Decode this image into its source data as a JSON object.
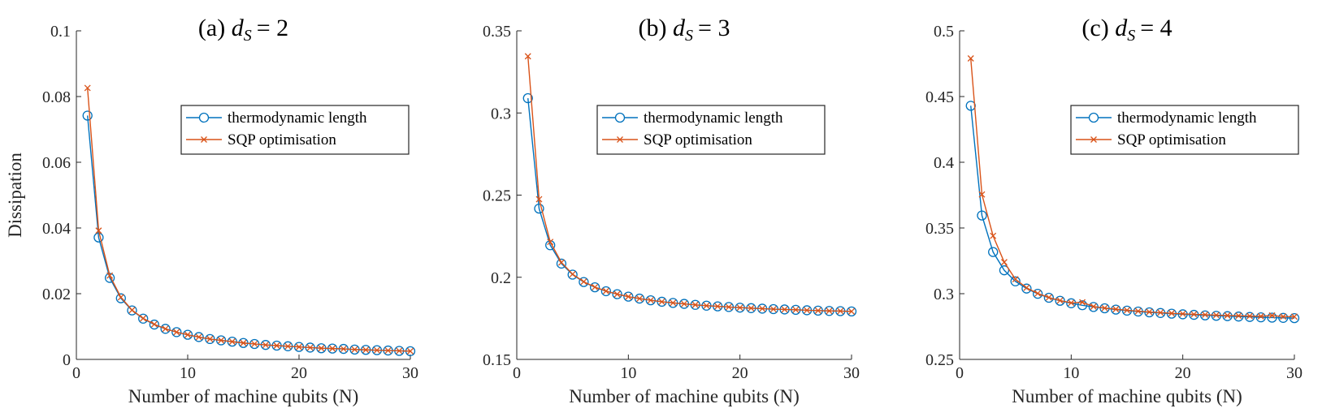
{
  "chart_data": [
    {
      "type": "line",
      "title_prefix": "(a)",
      "title_var": "d",
      "title_sub": "S",
      "title_rhs": "= 2",
      "xlabel": "Number of machine qubits (N)",
      "ylabel": "Dissipation",
      "xlim": [
        0,
        30
      ],
      "ylim": [
        0,
        0.1
      ],
      "xticks": [
        0,
        10,
        20,
        30
      ],
      "xtick_labels": [
        "0",
        "10",
        "20",
        "30"
      ],
      "yticks": [
        0,
        0.02,
        0.04,
        0.06,
        0.08,
        0.1
      ],
      "ytick_labels": [
        "0",
        "0.02",
        "0.04",
        "0.06",
        "0.08",
        "0.1"
      ],
      "grid": false,
      "legend_position": "top-right",
      "x": [
        1,
        2,
        3,
        4,
        5,
        6,
        7,
        8,
        9,
        10,
        11,
        12,
        13,
        14,
        15,
        16,
        17,
        18,
        19,
        20,
        21,
        22,
        23,
        24,
        25,
        26,
        27,
        28,
        29,
        30
      ],
      "series": [
        {
          "name": "thermodynamic length",
          "color": "#0072BD",
          "marker": "circle",
          "values": [
            0.0742,
            0.0371,
            0.0248,
            0.0186,
            0.0149,
            0.0124,
            0.0106,
            0.0093,
            0.0083,
            0.0075,
            0.0068,
            0.0062,
            0.0058,
            0.0054,
            0.005,
            0.0047,
            0.0044,
            0.0042,
            0.004,
            0.0038,
            0.0036,
            0.0034,
            0.0033,
            0.0032,
            0.003,
            0.0029,
            0.0028,
            0.0027,
            0.0026,
            0.0025
          ]
        },
        {
          "name": "SQP optimisation",
          "color": "#D95319",
          "marker": "x",
          "values": [
            0.0826,
            0.0392,
            0.0255,
            0.0189,
            0.015,
            0.0125,
            0.0107,
            0.0093,
            0.0083,
            0.0075,
            0.0068,
            0.0062,
            0.0058,
            0.0054,
            0.005,
            0.0047,
            0.0044,
            0.0042,
            0.004,
            0.0038,
            0.0036,
            0.0034,
            0.0033,
            0.0032,
            0.003,
            0.0029,
            0.0028,
            0.0027,
            0.0026,
            0.0025
          ]
        }
      ]
    },
    {
      "type": "line",
      "title_prefix": "(b)",
      "title_var": "d",
      "title_sub": "S",
      "title_rhs": "= 3",
      "xlabel": "Number of machine qubits (N)",
      "ylabel": "",
      "xlim": [
        0,
        30
      ],
      "ylim": [
        0.15,
        0.35
      ],
      "xticks": [
        0,
        10,
        20,
        30
      ],
      "xtick_labels": [
        "0",
        "10",
        "20",
        "30"
      ],
      "yticks": [
        0.15,
        0.2,
        0.25,
        0.3,
        0.35
      ],
      "ytick_labels": [
        "0.15",
        "0.2",
        "0.25",
        "0.3",
        "0.35"
      ],
      "grid": false,
      "legend_position": "top-right",
      "x": [
        1,
        2,
        3,
        4,
        5,
        6,
        7,
        8,
        9,
        10,
        11,
        12,
        13,
        14,
        15,
        16,
        17,
        18,
        19,
        20,
        21,
        22,
        23,
        24,
        25,
        26,
        27,
        28,
        29,
        30
      ],
      "series": [
        {
          "name": "thermodynamic length",
          "color": "#0072BD",
          "marker": "circle",
          "values": [
            0.309,
            0.2418,
            0.2195,
            0.2083,
            0.2016,
            0.1971,
            0.1939,
            0.1915,
            0.1897,
            0.1882,
            0.187,
            0.186,
            0.1851,
            0.1844,
            0.1838,
            0.1832,
            0.1827,
            0.1823,
            0.1819,
            0.1815,
            0.1812,
            0.1809,
            0.1806,
            0.1804,
            0.1802,
            0.1799,
            0.1797,
            0.1795,
            0.1794,
            0.1792
          ]
        },
        {
          "name": "SQP optimisation",
          "color": "#D95319",
          "marker": "x",
          "values": [
            0.3345,
            0.2475,
            0.2215,
            0.209,
            0.2019,
            0.1973,
            0.194,
            0.1916,
            0.1897,
            0.1882,
            0.187,
            0.186,
            0.1851,
            0.1844,
            0.1838,
            0.1832,
            0.1827,
            0.1823,
            0.1819,
            0.1815,
            0.1812,
            0.1809,
            0.1806,
            0.1804,
            0.1802,
            0.1799,
            0.1797,
            0.1795,
            0.1794,
            0.1792
          ]
        }
      ]
    },
    {
      "type": "line",
      "title_prefix": "(c)",
      "title_var": "d",
      "title_sub": "S",
      "title_rhs": "= 4",
      "xlabel": "Number of machine qubits (N)",
      "ylabel": "",
      "xlim": [
        0,
        30
      ],
      "ylim": [
        0.25,
        0.5
      ],
      "xticks": [
        0,
        10,
        20,
        30
      ],
      "xtick_labels": [
        "0",
        "10",
        "20",
        "30"
      ],
      "yticks": [
        0.25,
        0.3,
        0.35,
        0.4,
        0.45,
        0.5
      ],
      "ytick_labels": [
        "0.25",
        "0.3",
        "0.35",
        "0.4",
        "0.45",
        "0.5"
      ],
      "grid": false,
      "legend_position": "top-right",
      "x": [
        1,
        2,
        3,
        4,
        5,
        6,
        7,
        8,
        9,
        10,
        11,
        12,
        13,
        14,
        15,
        16,
        17,
        18,
        19,
        20,
        21,
        22,
        23,
        24,
        25,
        26,
        27,
        28,
        29,
        30
      ],
      "series": [
        {
          "name": "thermodynamic length",
          "color": "#0072BD",
          "marker": "circle",
          "values": [
            0.443,
            0.3595,
            0.3317,
            0.3178,
            0.3094,
            0.3039,
            0.2999,
            0.2969,
            0.2946,
            0.2927,
            0.2912,
            0.2899,
            0.2889,
            0.2879,
            0.2871,
            0.2864,
            0.2858,
            0.2853,
            0.2848,
            0.2843,
            0.2839,
            0.2835,
            0.2832,
            0.2829,
            0.2826,
            0.2823,
            0.282,
            0.2818,
            0.2816,
            0.2814
          ]
        },
        {
          "name": "SQP optimisation",
          "color": "#D95319",
          "marker": "x",
          "values": [
            0.479,
            0.3755,
            0.344,
            0.324,
            0.311,
            0.3045,
            0.3002,
            0.2971,
            0.2948,
            0.293,
            0.2935,
            0.2902,
            0.2891,
            0.2882,
            0.2874,
            0.2867,
            0.2861,
            0.2856,
            0.2851,
            0.2847,
            0.2843,
            0.284,
            0.2837,
            0.2834,
            0.2832,
            0.283,
            0.2828,
            0.2834,
            0.2826,
            0.2825
          ]
        }
      ]
    }
  ]
}
